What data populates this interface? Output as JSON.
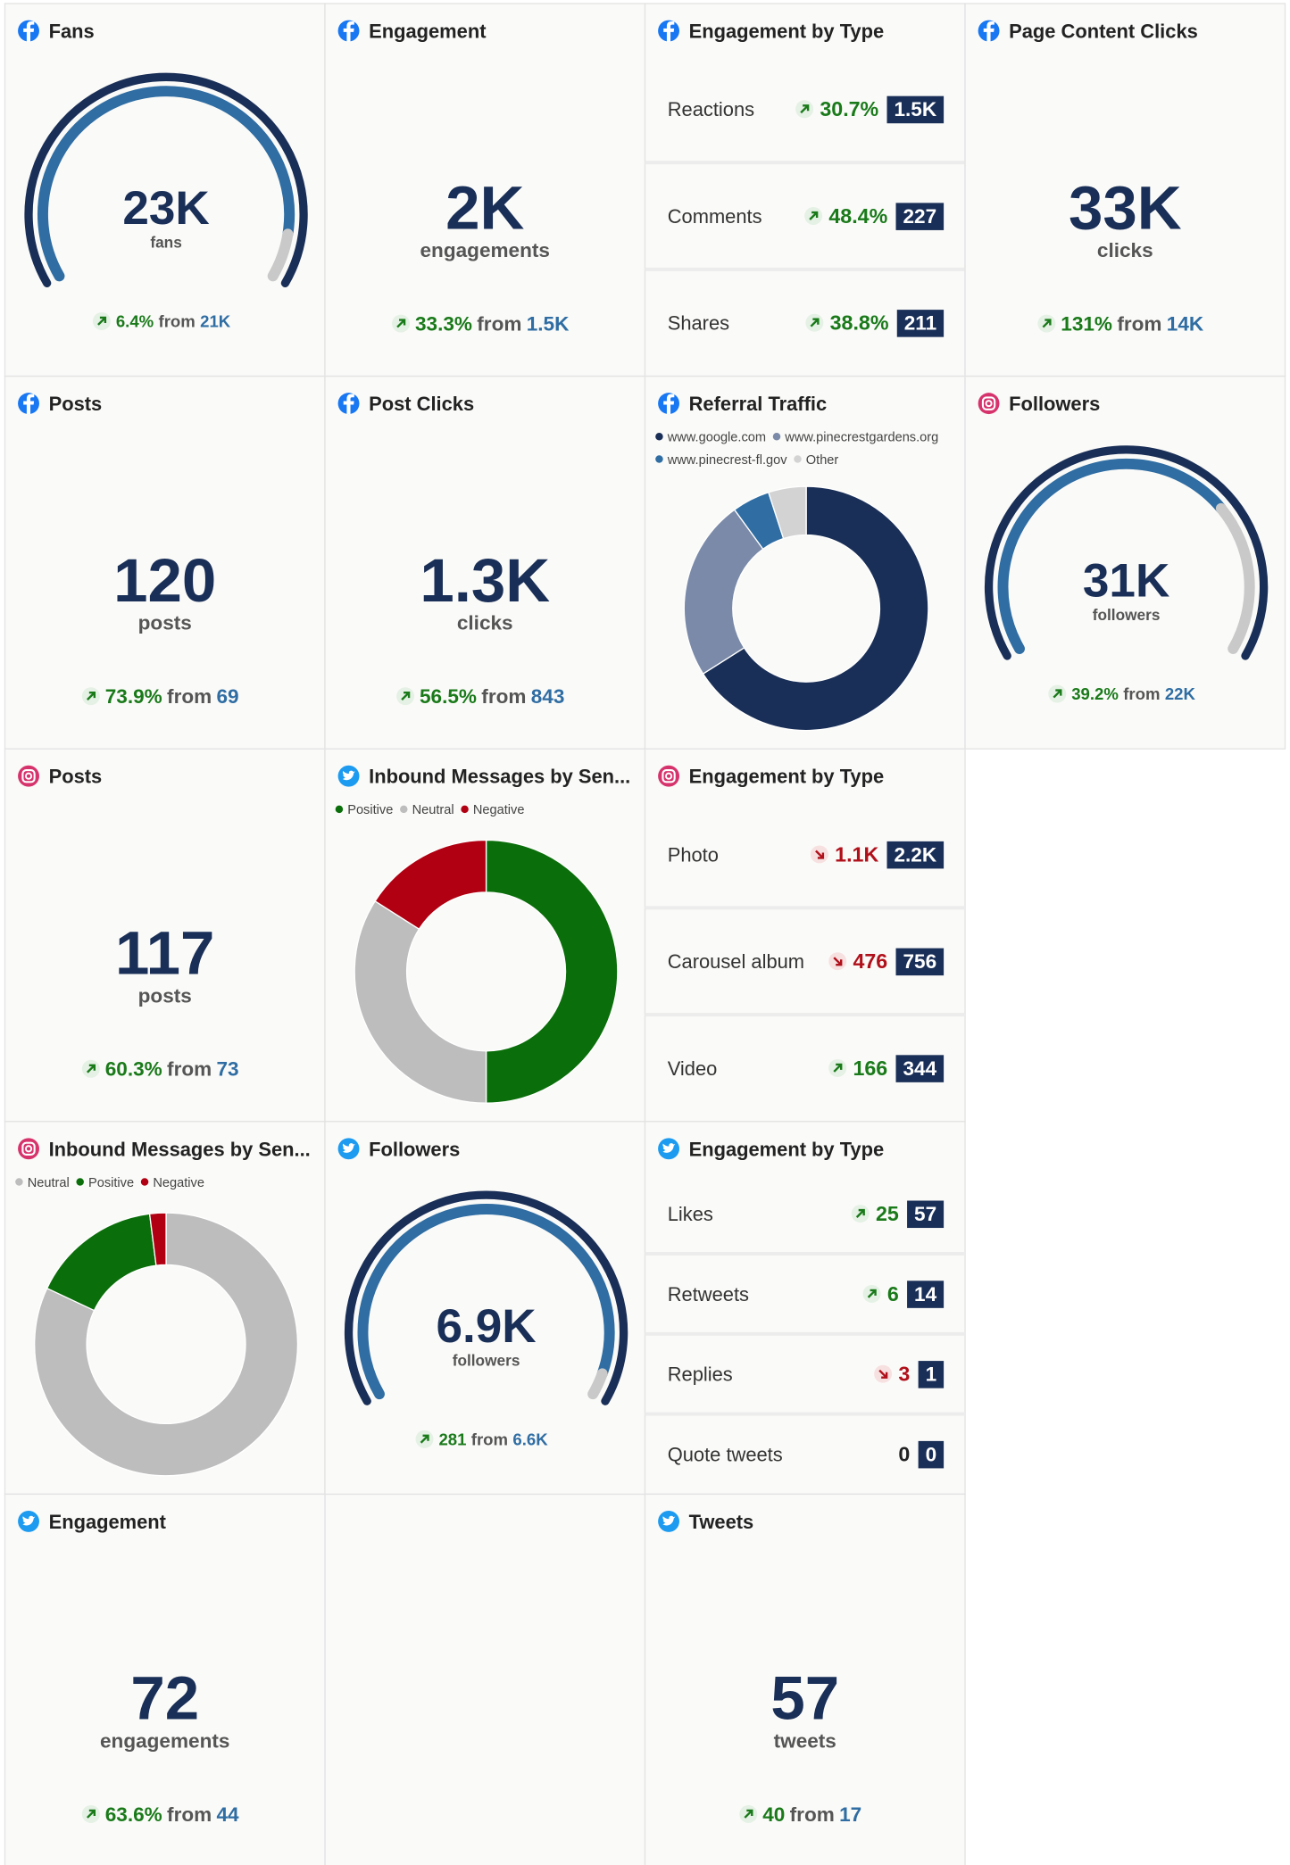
{
  "widgets": [
    {
      "kind": "gauge",
      "network": "facebook",
      "title": "Fans",
      "value": {
        "value": 23000,
        "label": "23K"
      },
      "unit": "fans",
      "change": "6.4%",
      "direction": "up",
      "from": "from",
      "previous": {
        "value": 21000,
        "label": "21K"
      }
    },
    {
      "kind": "metric",
      "network": "facebook",
      "title": "Engagement",
      "value": "2K",
      "unit": "engagements",
      "change": "33.3%",
      "direction": "up",
      "from": "from",
      "previous": "1.5K"
    },
    {
      "kind": "list",
      "network": "facebook",
      "title": "Engagement by Type",
      "rows": [
        {
          "name": "Reactions",
          "change": "30.7%",
          "direction": "up",
          "total": "1.5K"
        },
        {
          "name": "Comments",
          "change": "48.4%",
          "direction": "up",
          "total": "227"
        },
        {
          "name": "Shares",
          "change": "38.8%",
          "direction": "up",
          "total": "211"
        }
      ]
    },
    {
      "kind": "metric",
      "network": "facebook",
      "title": "Page Content Clicks",
      "value": "33K",
      "unit": "clicks",
      "change": "131%",
      "direction": "up",
      "from": "from",
      "previous": "14K"
    },
    {
      "kind": "metric",
      "network": "facebook",
      "title": "Posts",
      "value": "120",
      "unit": "posts",
      "change": "73.9%",
      "direction": "up",
      "from": "from",
      "previous": "69"
    },
    {
      "kind": "metric",
      "network": "facebook",
      "title": "Post Clicks",
      "value": "1.3K",
      "unit": "clicks",
      "change": "56.5%",
      "direction": "up",
      "from": "from",
      "previous": "843"
    },
    {
      "kind": "donut",
      "network": "facebook",
      "title": "Referral Traffic",
      "series": [
        {
          "name": "www.google.com",
          "color": "#1a2f57",
          "value": 66
        },
        {
          "name": "www.pinecrestgardens.org",
          "color": "#7a8aa8",
          "value": 24
        },
        {
          "name": "www.pinecrest-fl.gov",
          "color": "#2f6da3",
          "value": 5
        },
        {
          "name": "Other",
          "color": "#d3d3d3",
          "value": 5
        }
      ]
    },
    {
      "kind": "gauge",
      "network": "instagram",
      "title": "Followers",
      "value": {
        "value": 31000,
        "label": "31K"
      },
      "unit": "followers",
      "change": "39.2%",
      "direction": "up",
      "from": "from",
      "previous": {
        "value": 22000,
        "label": "22K"
      }
    },
    {
      "kind": "metric",
      "network": "instagram",
      "title": "Posts",
      "value": "117",
      "unit": "posts",
      "change": "60.3%",
      "direction": "up",
      "from": "from",
      "previous": "73"
    },
    {
      "kind": "donut",
      "network": "twitter",
      "title": "Inbound Messages by Sen...",
      "series": [
        {
          "name": "Positive",
          "color": "#0a6e0a",
          "value": 50
        },
        {
          "name": "Neutral",
          "color": "#bdbdbd",
          "value": 34
        },
        {
          "name": "Negative",
          "color": "#b00012",
          "value": 16
        }
      ]
    },
    {
      "kind": "list",
      "network": "instagram",
      "title": "Engagement by Type",
      "rows": [
        {
          "name": "Photo",
          "change": "1.1K",
          "direction": "down",
          "total": "2.2K"
        },
        {
          "name": "Carousel album",
          "change": "476",
          "direction": "down",
          "total": "756"
        },
        {
          "name": "Video",
          "change": "166",
          "direction": "up",
          "total": "344"
        }
      ]
    },
    {
      "kind": "donut",
      "network": "instagram",
      "title": "Inbound Messages by Sen...",
      "series": [
        {
          "name": "Neutral",
          "color": "#bdbdbd",
          "value": 82
        },
        {
          "name": "Positive",
          "color": "#0a6e0a",
          "value": 16
        },
        {
          "name": "Negative",
          "color": "#b00012",
          "value": 2
        }
      ]
    },
    {
      "kind": "gauge",
      "network": "twitter",
      "title": "Followers",
      "value": {
        "value": 6900,
        "label": "6.9K"
      },
      "unit": "followers",
      "change": "281",
      "direction": "up",
      "from": "from",
      "previous": {
        "value": 6600,
        "label": "6.6K"
      }
    },
    {
      "kind": "list",
      "network": "twitter",
      "title": "Engagement by Type",
      "rows": [
        {
          "name": "Likes",
          "change": "25",
          "direction": "up",
          "total": "57"
        },
        {
          "name": "Retweets",
          "change": "6",
          "direction": "up",
          "total": "14"
        },
        {
          "name": "Replies",
          "change": "3",
          "direction": "down",
          "total": "1"
        },
        {
          "name": "Quote tweets",
          "change": "0",
          "direction": "none",
          "total": "0"
        }
      ]
    },
    {
      "kind": "metric",
      "network": "twitter",
      "title": "Engagement",
      "value": "72",
      "unit": "engagements",
      "change": "63.6%",
      "direction": "up",
      "from": "from",
      "previous": "44"
    },
    {
      "kind": "metric",
      "network": "twitter",
      "title": "Tweets",
      "value": "57",
      "unit": "tweets",
      "change": "40",
      "direction": "up",
      "from": "from",
      "previous": "17"
    }
  ]
}
